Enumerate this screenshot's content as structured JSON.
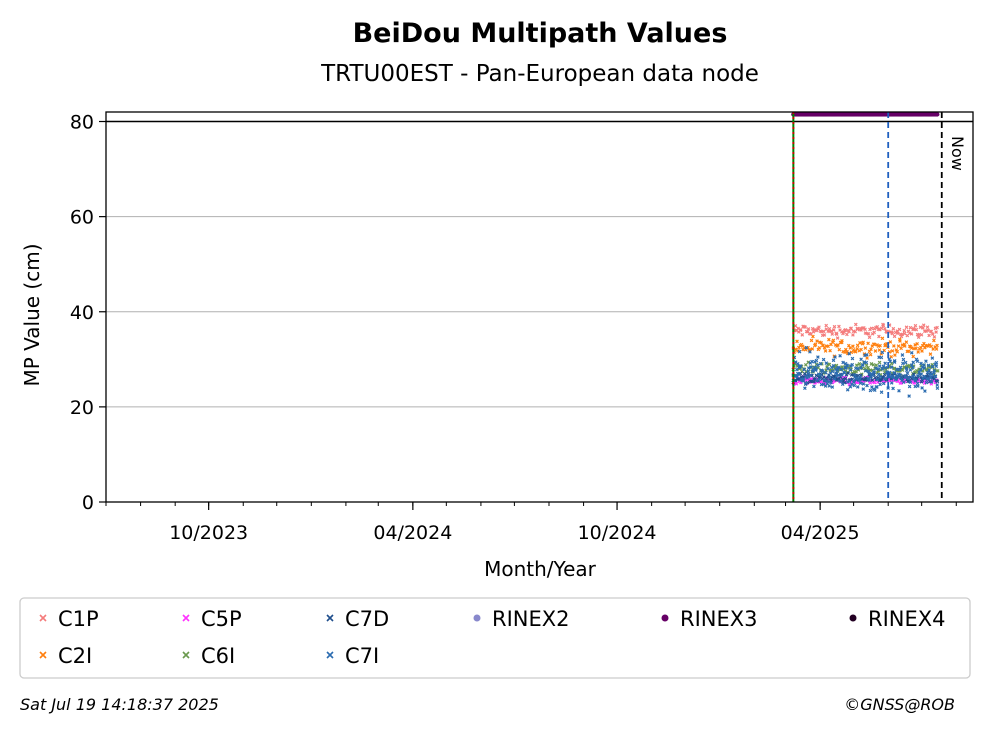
{
  "chart_data": {
    "type": "scatter",
    "title": "BeiDou Multipath Values",
    "subtitle": "TRTU00EST - Pan-European data node",
    "xlabel": "Month/Year",
    "ylabel": "MP Value (cm)",
    "ylim": [
      0,
      82
    ],
    "xlim": [
      "2023-07-01",
      "2025-08-16"
    ],
    "y_ticks": [
      0,
      20,
      40,
      60,
      80
    ],
    "x_ticks": [
      {
        "date": "2023-10-01",
        "label": "10/2023"
      },
      {
        "date": "2024-04-01",
        "label": "04/2024"
      },
      {
        "date": "2024-10-01",
        "label": "10/2024"
      },
      {
        "date": "2025-04-01",
        "label": "04/2025"
      }
    ],
    "grid": "y",
    "legend_position": "bottom",
    "reference_lines": [
      {
        "name": "upper-limit-line",
        "axis": "y",
        "value": 80,
        "color": "#000000",
        "style": "solid"
      },
      {
        "name": "start-line",
        "axis": "x",
        "date": "2025-03-08",
        "color": "#008000",
        "style": "solid"
      },
      {
        "name": "start-line-overlay",
        "axis": "x",
        "date": "2025-03-08",
        "color": "#cc0000",
        "style": "dotted"
      },
      {
        "name": "event-line",
        "axis": "x",
        "date": "2025-06-01",
        "color": "#1f5fbf",
        "style": "dashed"
      },
      {
        "name": "now-line",
        "axis": "x",
        "date": "2025-07-19",
        "color": "#000000",
        "style": "dashed",
        "label": "Now"
      }
    ],
    "date_range": [
      "2025-03-08",
      "2025-07-15"
    ],
    "series": [
      {
        "name": "C1P",
        "marker": "x",
        "color": "#f47c7c",
        "mean": 36,
        "spread": 2
      },
      {
        "name": "C2I",
        "marker": "x",
        "color": "#ff7f0e",
        "mean": 32.5,
        "spread": 2.5
      },
      {
        "name": "C5P",
        "marker": "x",
        "color": "#ff33ff",
        "mean": 25.5,
        "spread": 1
      },
      {
        "name": "C6I",
        "marker": "x",
        "color": "#6a994e",
        "mean": 28,
        "spread": 2
      },
      {
        "name": "C7D",
        "marker": "x",
        "color": "#1f4e8c",
        "mean": 26,
        "spread": 1.5
      },
      {
        "name": "C7I",
        "marker": "x",
        "color": "#2b6cb0",
        "mean": 27,
        "spread": 5
      },
      {
        "name": "RINEX2",
        "marker": "o",
        "color": "#8888cc",
        "mean": null,
        "spread": 0
      },
      {
        "name": "RINEX3",
        "marker": "o",
        "color": "#660066",
        "mean": 81.5,
        "spread": 0
      },
      {
        "name": "RINEX4",
        "marker": "o",
        "color": "#220022",
        "mean": null,
        "spread": 0
      }
    ]
  },
  "legend": {
    "items": [
      {
        "name": "C1P",
        "color": "#f47c7c",
        "marker": "x"
      },
      {
        "name": "C5P",
        "color": "#ff33ff",
        "marker": "x"
      },
      {
        "name": "C7D",
        "color": "#1f4e8c",
        "marker": "x"
      },
      {
        "name": "RINEX2",
        "color": "#8888cc",
        "marker": "o"
      },
      {
        "name": "RINEX3",
        "color": "#660066",
        "marker": "o"
      },
      {
        "name": "RINEX4",
        "color": "#220022",
        "marker": "o"
      },
      {
        "name": "C2I",
        "color": "#ff7f0e",
        "marker": "x"
      },
      {
        "name": "C6I",
        "color": "#6a994e",
        "marker": "x"
      },
      {
        "name": "C7I",
        "color": "#2b6cb0",
        "marker": "x"
      }
    ]
  },
  "footer": {
    "timestamp": "Sat Jul 19 14:18:37 2025",
    "copyright": "©GNSS@ROB"
  }
}
